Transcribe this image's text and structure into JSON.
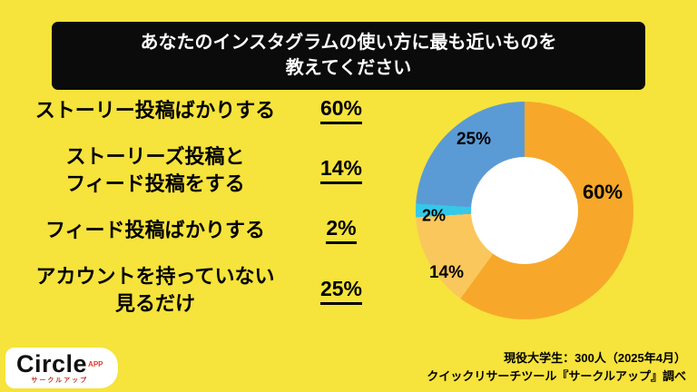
{
  "background_color": "#F6E33B",
  "title": {
    "text": "あなたのインスタグラムの使い方に最も近いものを\n教えてください"
  },
  "options": [
    {
      "label": "ストーリー投稿ばかりする",
      "value": "60%"
    },
    {
      "label": "ストーリーズ投稿と\nフィード投稿をする",
      "value": "14%"
    },
    {
      "label": "フィード投稿ばかりする",
      "value": "2%"
    },
    {
      "label": "アカウントを持っていない\n見るだけ",
      "value": "25%"
    }
  ],
  "chart_data": {
    "type": "pie",
    "donut": true,
    "title": "あなたのインスタグラムの使い方に最も近いものを教えてください",
    "categories": [
      "ストーリー投稿ばかりする",
      "ストーリーズ投稿とフィード投稿をする",
      "フィード投稿ばかりする",
      "アカウントを持っていない見るだけ"
    ],
    "values": [
      60,
      14,
      2,
      25
    ],
    "labels": [
      "60%",
      "14%",
      "2%",
      "25%"
    ],
    "colors": [
      "#F7A82A",
      "#FAC75D",
      "#35C8E8",
      "#5B9BD5"
    ],
    "start_angle_deg": 0,
    "direction": "clockwise",
    "legend": "none"
  },
  "logo": {
    "brand": "Circle",
    "superscript": "APP",
    "subtext": "サークルアップ"
  },
  "footer": {
    "line1": "現役大学生：300人（2025年4月）",
    "line2": "クイックリサーチツール『サークルアップ』調べ"
  }
}
